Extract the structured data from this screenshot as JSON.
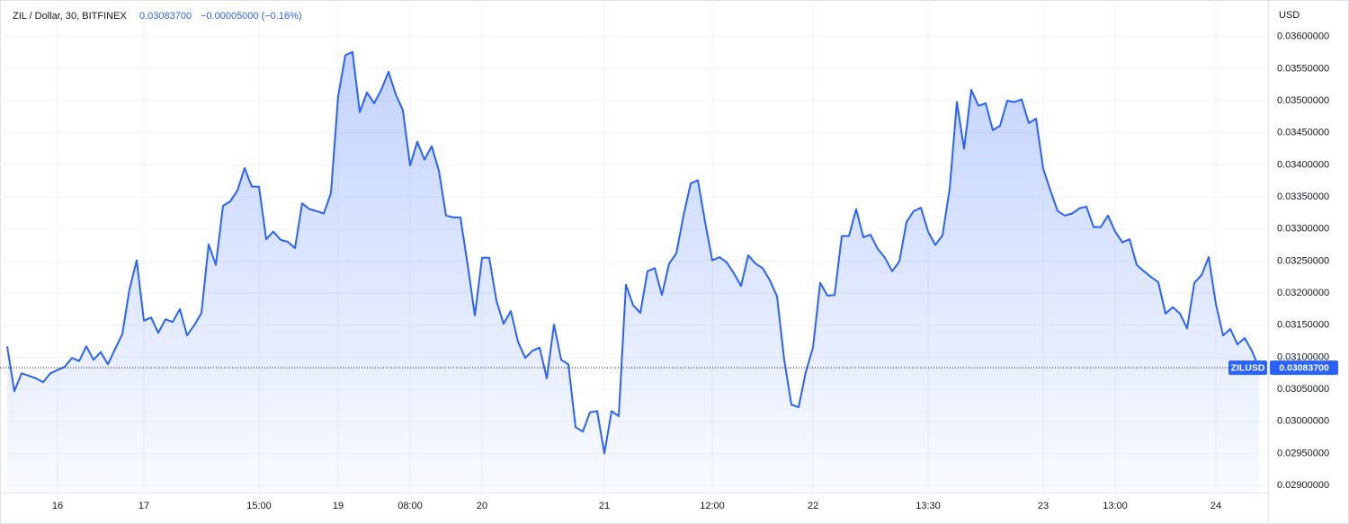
{
  "chart_data": {
    "type": "area",
    "title": "ZIL / Dollar, 30, BITFINEX",
    "last_price": "0.03083700",
    "change": "−0.00005000 (−0.16%)",
    "symbol": "ZILUSD",
    "axis_unit": "USD",
    "color": "#2962ff",
    "grid": true,
    "categories": [
      null,
      null,
      null,
      null,
      null,
      null,
      null,
      "16",
      null,
      null,
      null,
      null,
      null,
      null,
      null,
      null,
      null,
      null,
      null,
      "17",
      null,
      null,
      null,
      null,
      null,
      null,
      null,
      null,
      null,
      null,
      null,
      null,
      null,
      null,
      null,
      "15:00",
      null,
      null,
      null,
      null,
      null,
      null,
      null,
      null,
      null,
      null,
      "19",
      null,
      null,
      null,
      null,
      null,
      null,
      null,
      null,
      null,
      "08:00",
      null,
      null,
      null,
      null,
      null,
      null,
      null,
      null,
      null,
      "20",
      null,
      null,
      null,
      null,
      null,
      null,
      null,
      null,
      null,
      null,
      null,
      null,
      null,
      null,
      null,
      null,
      "21",
      null,
      null,
      null,
      null,
      null,
      null,
      null,
      null,
      null,
      null,
      null,
      null,
      null,
      null,
      "12:00",
      null,
      null,
      null,
      null,
      null,
      null,
      null,
      null,
      null,
      null,
      null,
      null,
      null,
      "22",
      null,
      null,
      null,
      null,
      null,
      null,
      null,
      null,
      null,
      null,
      null,
      null,
      null,
      null,
      null,
      "13:30",
      null,
      null,
      null,
      null,
      null,
      null,
      null,
      null,
      null,
      null,
      null,
      null,
      null,
      null,
      null,
      "23",
      null,
      null,
      null,
      null,
      null,
      null,
      null,
      null,
      null,
      "13:00",
      null,
      null,
      null,
      null,
      null,
      null,
      null,
      null,
      null,
      null,
      null,
      null,
      null,
      "24",
      null,
      null,
      null,
      null,
      null,
      null
    ],
    "values": [
      0.03117,
      0.03047,
      0.03075,
      0.03071,
      0.03067,
      0.03061,
      0.03075,
      0.0308,
      0.03085,
      0.03099,
      0.03094,
      0.03117,
      0.03096,
      0.03108,
      0.03089,
      0.03113,
      0.03136,
      0.03206,
      0.03251,
      0.03157,
      0.03162,
      0.03138,
      0.03159,
      0.03155,
      0.03175,
      0.03134,
      0.0315,
      0.03169,
      0.03276,
      0.03244,
      0.03336,
      0.03343,
      0.0336,
      0.03395,
      0.03366,
      0.03366,
      0.03284,
      0.03296,
      0.03283,
      0.0328,
      0.0327,
      0.0334,
      0.03331,
      0.03328,
      0.03324,
      0.03356,
      0.03507,
      0.03571,
      0.03576,
      0.03482,
      0.03513,
      0.03496,
      0.03517,
      0.03545,
      0.0351,
      0.03485,
      0.03399,
      0.03436,
      0.03408,
      0.03429,
      0.03391,
      0.03321,
      0.03318,
      0.03318,
      0.03244,
      0.03165,
      0.03255,
      0.03255,
      0.03188,
      0.03152,
      0.03172,
      0.03124,
      0.03099,
      0.0311,
      0.03115,
      0.03067,
      0.03151,
      0.03096,
      0.03089,
      0.02991,
      0.02984,
      0.03014,
      0.03016,
      0.0295,
      0.03016,
      0.03008,
      0.03213,
      0.03181,
      0.03169,
      0.03234,
      0.03239,
      0.03197,
      0.03246,
      0.03262,
      0.03321,
      0.03371,
      0.03376,
      0.03311,
      0.03251,
      0.03256,
      0.03248,
      0.03231,
      0.03211,
      0.03259,
      0.03246,
      0.03239,
      0.0322,
      0.03195,
      0.03096,
      0.03026,
      0.03022,
      0.03077,
      0.03115,
      0.03216,
      0.03196,
      0.03197,
      0.03289,
      0.03289,
      0.03331,
      0.03287,
      0.03291,
      0.03269,
      0.03255,
      0.03234,
      0.03249,
      0.03311,
      0.03328,
      0.03333,
      0.03296,
      0.03275,
      0.0329,
      0.03363,
      0.03498,
      0.03425,
      0.03517,
      0.03492,
      0.03496,
      0.03454,
      0.03461,
      0.035,
      0.03498,
      0.03502,
      0.03465,
      0.03472,
      0.03394,
      0.0336,
      0.03328,
      0.03321,
      0.03324,
      0.03332,
      0.03335,
      0.03303,
      0.03303,
      0.03321,
      0.03296,
      0.03279,
      0.03284,
      0.03244,
      0.03234,
      0.03225,
      0.03217,
      0.03168,
      0.03178,
      0.03168,
      0.03145,
      0.03216,
      0.03228,
      0.03256,
      0.03183,
      0.03134,
      0.03144,
      0.0312,
      0.0313,
      0.0311,
      0.030837
    ],
    "ylim": [
      0.02889,
      0.0365
    ],
    "yticks": [
      {
        "value": 0.029,
        "label": "0.02900000"
      },
      {
        "value": 0.0295,
        "label": "0.02950000"
      },
      {
        "value": 0.03,
        "label": "0.03000000"
      },
      {
        "value": 0.0305,
        "label": "0.03050000"
      },
      {
        "value": 0.031,
        "label": "0.03100000"
      },
      {
        "value": 0.0315,
        "label": "0.03150000"
      },
      {
        "value": 0.032,
        "label": "0.03200000"
      },
      {
        "value": 0.0325,
        "label": "0.03250000"
      },
      {
        "value": 0.033,
        "label": "0.03300000"
      },
      {
        "value": 0.0335,
        "label": "0.03350000"
      },
      {
        "value": 0.034,
        "label": "0.03400000"
      },
      {
        "value": 0.0345,
        "label": "0.03450000"
      },
      {
        "value": 0.035,
        "label": "0.03500000"
      },
      {
        "value": 0.0355,
        "label": "0.03550000"
      },
      {
        "value": 0.036,
        "label": "0.03600000"
      }
    ]
  }
}
